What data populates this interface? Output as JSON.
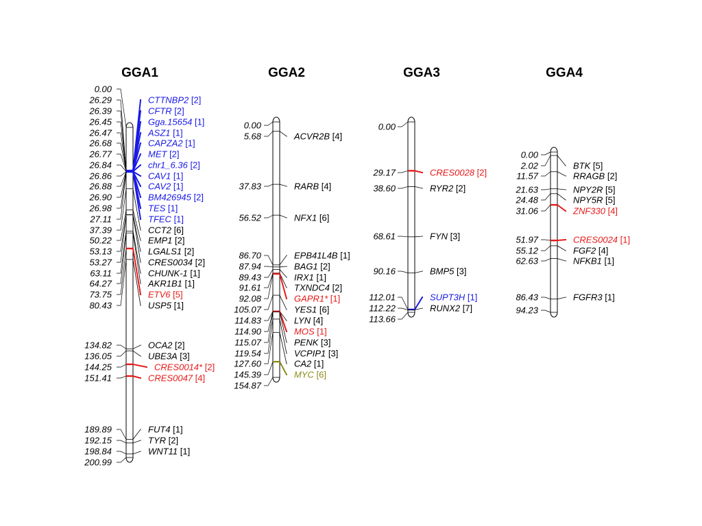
{
  "colors": {
    "default": "#000000",
    "blue": "#1a1ae6",
    "red": "#e61a1a",
    "olive": "#8b8b1a"
  },
  "chromosomes": [
    {
      "name": "GGA1",
      "length": 200.99,
      "markers": [
        {
          "pos": "0.00",
          "gene": "",
          "count": "",
          "color": "default"
        },
        {
          "pos": "26.29",
          "gene": "CTTNBP2",
          "count": "[2]",
          "color": "blue"
        },
        {
          "pos": "26.39",
          "gene": "CFTR",
          "count": "[2]",
          "color": "blue"
        },
        {
          "pos": "26.45",
          "gene": "Gga.15654",
          "count": "[1]",
          "color": "blue"
        },
        {
          "pos": "26.47",
          "gene": "ASZ1",
          "count": "[1]",
          "color": "blue"
        },
        {
          "pos": "26.68",
          "gene": "CAPZA2",
          "count": "[1]",
          "color": "blue"
        },
        {
          "pos": "26.77",
          "gene": "MET",
          "count": "[2]",
          "color": "blue"
        },
        {
          "pos": "26.84",
          "gene": "chr1_6.36",
          "count": "[2]",
          "color": "blue"
        },
        {
          "pos": "26.86",
          "gene": "CAV1",
          "count": "[1]",
          "color": "blue"
        },
        {
          "pos": "26.88",
          "gene": "CAV2",
          "count": "[1]",
          "color": "blue"
        },
        {
          "pos": "26.90",
          "gene": "BM426945",
          "count": "[2]",
          "color": "blue"
        },
        {
          "pos": "26.98",
          "gene": "TES",
          "count": "[1]",
          "color": "blue"
        },
        {
          "pos": "27.11",
          "gene": "TFEC",
          "count": "[1]",
          "color": "blue"
        },
        {
          "pos": "37.39",
          "gene": "CCT2",
          "count": "[6]",
          "color": "default"
        },
        {
          "pos": "50.22",
          "gene": "EMP1",
          "count": "[2]",
          "color": "default"
        },
        {
          "pos": "53.13",
          "gene": "LGALS1",
          "count": "[2]",
          "color": "default"
        },
        {
          "pos": "53.27",
          "gene": "CRES0034",
          "count": "[2]",
          "color": "default"
        },
        {
          "pos": "63.11",
          "gene": "CHUNK-1",
          "count": "[1]",
          "color": "default"
        },
        {
          "pos": "64.27",
          "gene": "AKR1B1",
          "count": "[1]",
          "color": "default"
        },
        {
          "pos": "73.75",
          "gene": "ETV6",
          "count": "[5]",
          "color": "red"
        },
        {
          "pos": "80.43",
          "gene": "USP5",
          "count": "[1]",
          "color": "default"
        },
        {
          "pos": "134.82",
          "gene": "OCA2",
          "count": "[2]",
          "color": "default"
        },
        {
          "pos": "136.05",
          "gene": "UBE3A",
          "count": "[3]",
          "color": "default"
        },
        {
          "pos": "144.25",
          "gene": "CRES0014*",
          "count": "[2]",
          "color": "red"
        },
        {
          "pos": "151.41",
          "gene": "CRES0047",
          "count": "[4]",
          "color": "red"
        },
        {
          "pos": "189.89",
          "gene": "FUT4",
          "count": "[1]",
          "color": "default"
        },
        {
          "pos": "192.15",
          "gene": "TYR",
          "count": "[2]",
          "color": "default"
        },
        {
          "pos": "198.84",
          "gene": "WNT11",
          "count": "[1]",
          "color": "default"
        },
        {
          "pos": "200.99",
          "gene": "",
          "count": "",
          "color": "default"
        }
      ]
    },
    {
      "name": "GGA2",
      "length": 154.87,
      "markers": [
        {
          "pos": "0.00",
          "gene": "",
          "count": "",
          "color": "default"
        },
        {
          "pos": "5.68",
          "gene": "ACVR2B",
          "count": "[4]",
          "color": "default"
        },
        {
          "pos": "37.83",
          "gene": "RARB",
          "count": "[4]",
          "color": "default"
        },
        {
          "pos": "56.52",
          "gene": "NFX1",
          "count": "[6]",
          "color": "default"
        },
        {
          "pos": "86.70",
          "gene": "EPB41L4B",
          "count": "[1]",
          "color": "default"
        },
        {
          "pos": "87.94",
          "gene": "BAG1",
          "count": "[2]",
          "color": "default"
        },
        {
          "pos": "89.43",
          "gene": "IRX1",
          "count": "[1]",
          "color": "default"
        },
        {
          "pos": "91.61",
          "gene": "TXNDC4",
          "count": "[2]",
          "color": "default"
        },
        {
          "pos": "92.08",
          "gene": "GAPR1*",
          "count": "[1]",
          "color": "red"
        },
        {
          "pos": "105.07",
          "gene": "YES1",
          "count": "[6]",
          "color": "default"
        },
        {
          "pos": "114.83",
          "gene": "LYN",
          "count": "[4]",
          "color": "default"
        },
        {
          "pos": "114.90",
          "gene": "MOS",
          "count": "[1]",
          "color": "red"
        },
        {
          "pos": "115.07",
          "gene": "PENK",
          "count": "[3]",
          "color": "default"
        },
        {
          "pos": "119.54",
          "gene": "VCPIP1",
          "count": "[3]",
          "color": "default"
        },
        {
          "pos": "127.60",
          "gene": "CA2",
          "count": "[1]",
          "color": "default"
        },
        {
          "pos": "145.39",
          "gene": "MYC",
          "count": "[6]",
          "color": "olive"
        },
        {
          "pos": "154.87",
          "gene": "",
          "count": "",
          "color": "default"
        }
      ]
    },
    {
      "name": "GGA3",
      "length": 113.66,
      "markers": [
        {
          "pos": "0.00",
          "gene": "",
          "count": "",
          "color": "default"
        },
        {
          "pos": "29.17",
          "gene": "CRES0028",
          "count": "[2]",
          "color": "red"
        },
        {
          "pos": "38.60",
          "gene": "RYR2",
          "count": "[2]",
          "color": "default"
        },
        {
          "pos": "68.61",
          "gene": "FYN",
          "count": "[3]",
          "color": "default"
        },
        {
          "pos": "90.16",
          "gene": "BMP5",
          "count": "[3]",
          "color": "default"
        },
        {
          "pos": "112.01",
          "gene": "SUPT3H",
          "count": "[1]",
          "color": "blue"
        },
        {
          "pos": "112.22",
          "gene": "RUNX2",
          "count": "[7]",
          "color": "default"
        },
        {
          "pos": "113.66",
          "gene": "",
          "count": "",
          "color": "default"
        }
      ]
    },
    {
      "name": "GGA4",
      "length": 94.23,
      "markers": [
        {
          "pos": "0.00",
          "gene": "",
          "count": "",
          "color": "default"
        },
        {
          "pos": "2.02",
          "gene": "BTK",
          "count": "[5]",
          "color": "default"
        },
        {
          "pos": "11.57",
          "gene": "RRAGB",
          "count": "[2]",
          "color": "default"
        },
        {
          "pos": "21.63",
          "gene": "NPY2R",
          "count": "[5]",
          "color": "default"
        },
        {
          "pos": "24.48",
          "gene": "NPY5R",
          "count": "[5]",
          "color": "default"
        },
        {
          "pos": "31.06",
          "gene": "ZNF330",
          "count": "[4]",
          "color": "red"
        },
        {
          "pos": "51.97",
          "gene": "CRES0024",
          "count": "[1]",
          "color": "red"
        },
        {
          "pos": "55.12",
          "gene": "FGF2",
          "count": "[4]",
          "color": "default"
        },
        {
          "pos": "62.63",
          "gene": "NFKB1",
          "count": "[1]",
          "color": "default"
        },
        {
          "pos": "86.43",
          "gene": "FGFR3",
          "count": "[1]",
          "color": "default"
        },
        {
          "pos": "94.23",
          "gene": "",
          "count": "",
          "color": "default"
        }
      ]
    }
  ]
}
